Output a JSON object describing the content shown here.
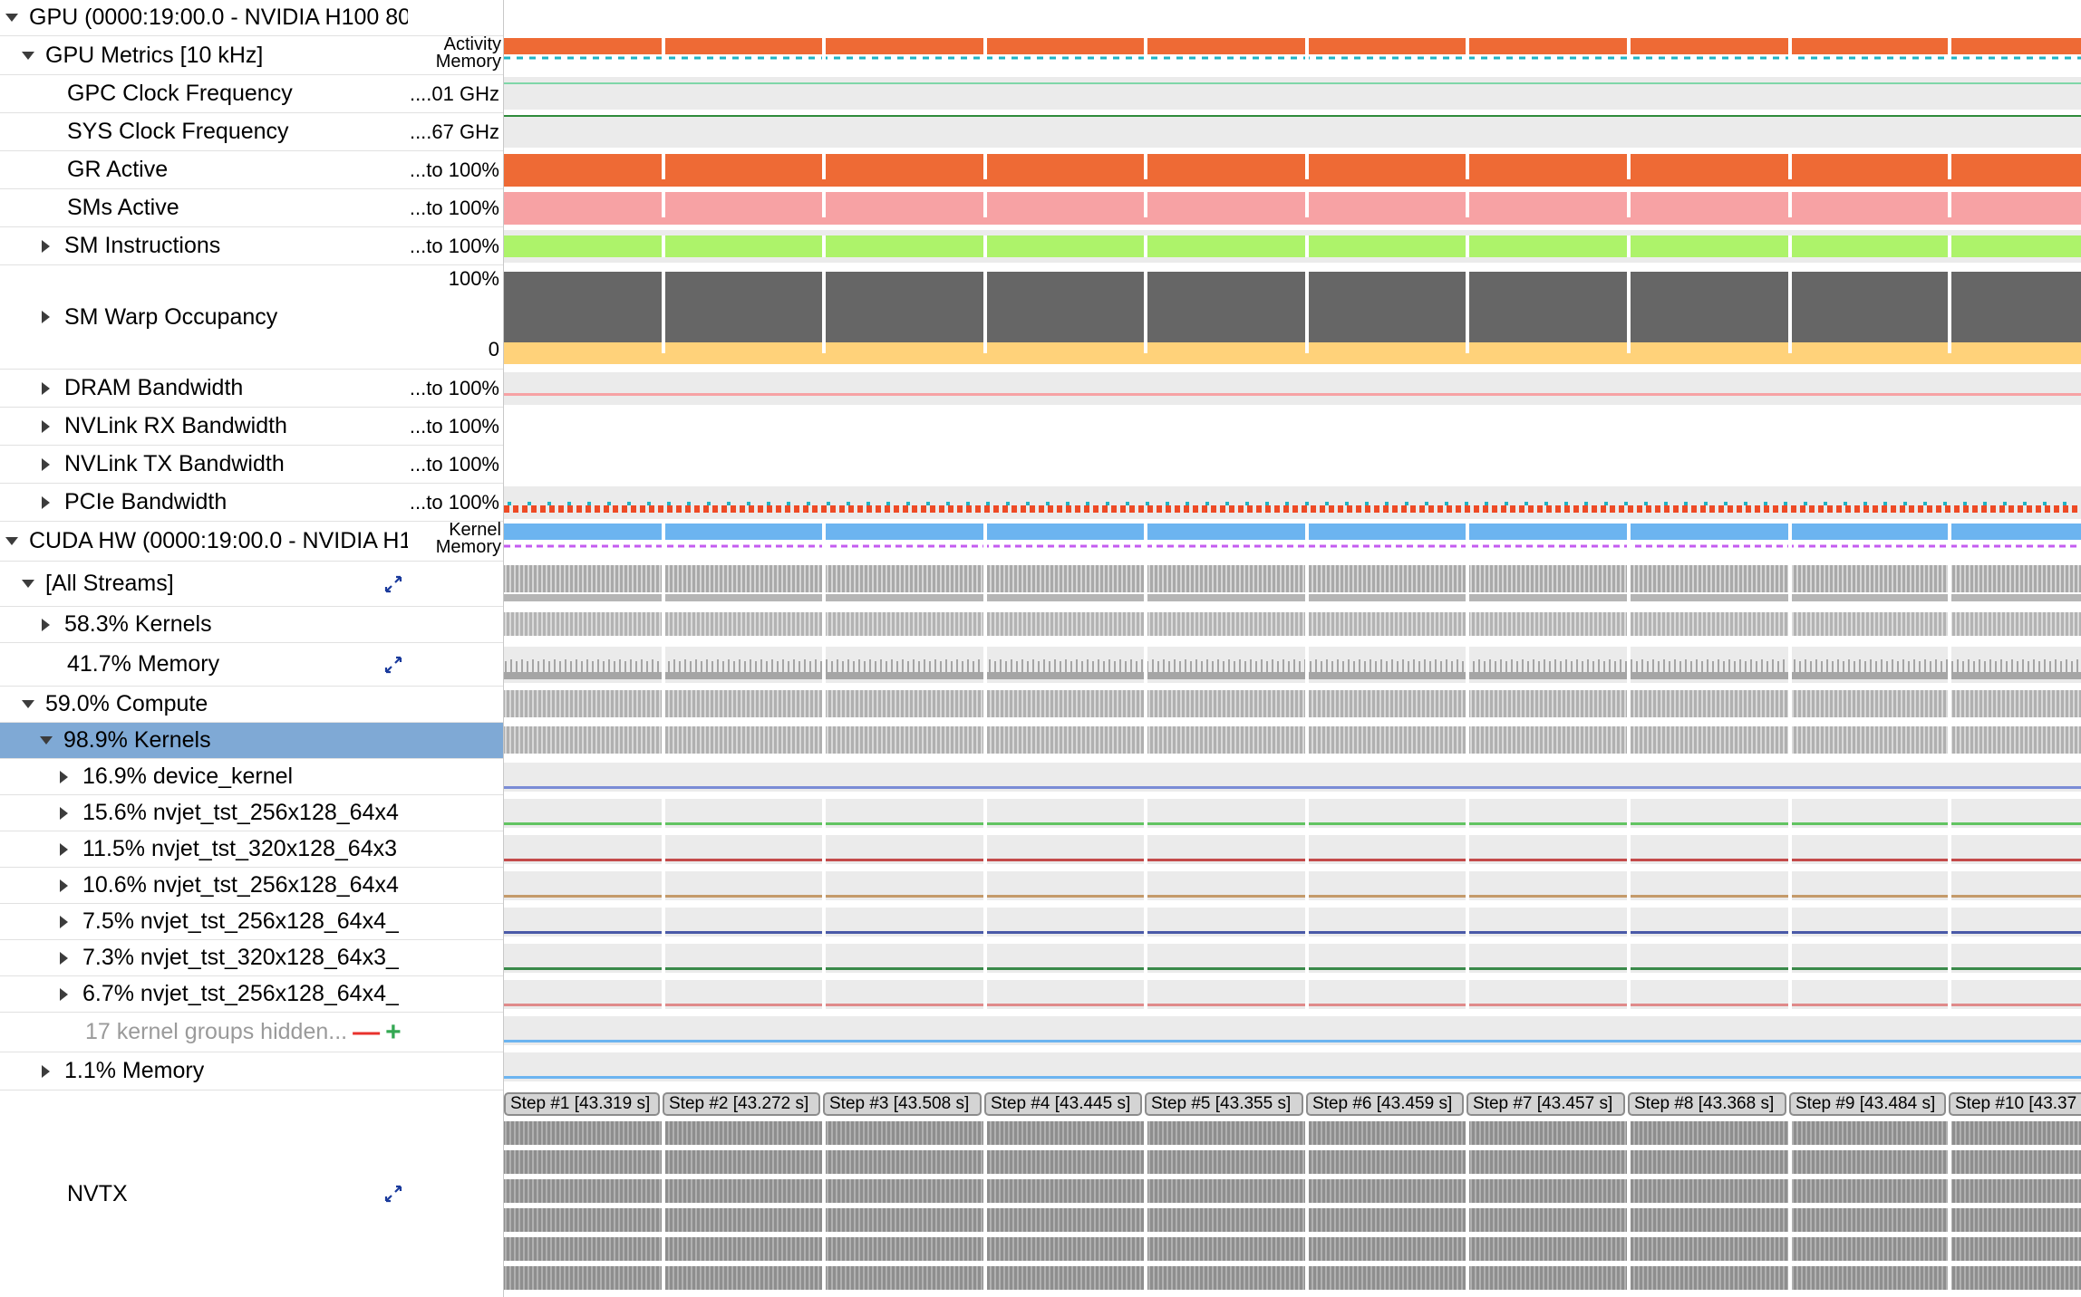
{
  "tree": {
    "gpu_header": "GPU (0000:19:00.0 - NVIDIA H100 80",
    "gpu_metrics": "GPU Metrics [10 kHz]",
    "gpc_clock": "GPC Clock Frequency",
    "sys_clock": "SYS Clock Frequency",
    "gr_active": "GR Active",
    "sms_active": "SMs Active",
    "sm_instructions": "SM Instructions",
    "sm_warp_occupancy": "SM Warp Occupancy",
    "dram_bandwidth": "DRAM Bandwidth",
    "nvlink_rx": "NVLink RX Bandwidth",
    "nvlink_tx": "NVLink TX Bandwidth",
    "pcie_bandwidth": "PCIe Bandwidth",
    "cuda_hw_header": "CUDA HW (0000:19:00.0 - NVIDIA H1",
    "all_streams": "[All Streams]",
    "streams_kernels": "58.3% Kernels",
    "streams_memory": "41.7% Memory",
    "compute": "59.0% Compute",
    "compute_kernels": "98.9% Kernels",
    "k1": "16.9% device_kernel",
    "k2": "15.6% nvjet_tst_256x128_64x4",
    "k3": "11.5% nvjet_tst_320x128_64x3",
    "k4": "10.6% nvjet_tst_256x128_64x4",
    "k5": "7.5% nvjet_tst_256x128_64x4_",
    "k6": "7.3% nvjet_tst_320x128_64x3_",
    "k7": "6.7% nvjet_tst_256x128_64x4_",
    "hidden_groups": "17 kernel groups hidden...",
    "hidden_minus": "—",
    "hidden_plus": "+",
    "compute_memory": "1.1% Memory",
    "nvtx": "NVTX"
  },
  "scale": {
    "activity": "Activity",
    "memory": "Memory",
    "gpc": "....01 GHz",
    "sys": "....67 GHz",
    "gr": "...to 100%",
    "sms": "...to 100%",
    "sm_instr": "...to 100%",
    "warp_top": "100%",
    "warp_bottom": "0",
    "dram": "...to 100%",
    "nvlink_rx": "...to 100%",
    "nvlink_tx": "...to 100%",
    "pcie": "...to 100%",
    "kernel": "Kernel",
    "cuda_memory": "Memory"
  },
  "steps": [
    "Step #1 [43.319 s]",
    "Step #2 [43.272 s]",
    "Step #3 [43.508 s]",
    "Step #4 [43.445 s]",
    "Step #5 [43.355 s]",
    "Step #6 [43.459 s]",
    "Step #7 [43.457 s]",
    "Step #8 [43.368 s]",
    "Step #9 [43.484 s]",
    "Step #10 [43.37"
  ],
  "colors": {
    "activity": "#ee6a35",
    "memory_line": "#1fb4c4",
    "gr_active": "#ee6a35",
    "sms_active": "#f7a2a4",
    "sm_instructions": "#adf36a",
    "warp_occupancy": "#666666",
    "warp_base": "#ffd27a",
    "kernel_blue": "#6cb4f0",
    "memory_magenta": "#c45cf0",
    "selected_row": "#7fa9d5",
    "track_bg": "#ebebeb"
  }
}
